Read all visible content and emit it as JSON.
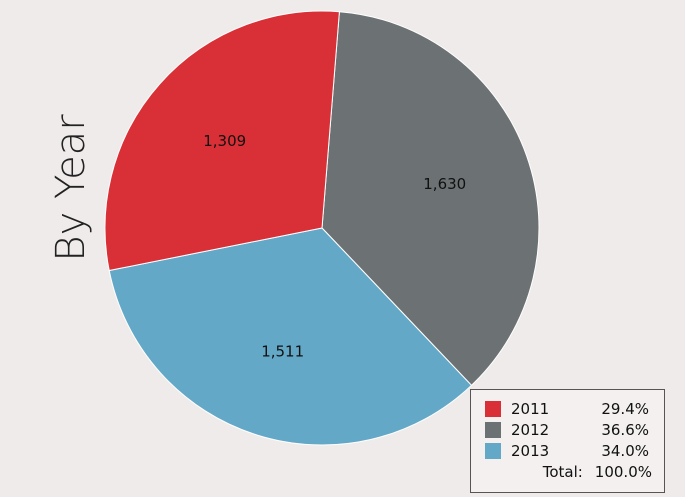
{
  "chart_data": {
    "type": "pie",
    "ylabel": "By Year",
    "slices": [
      {
        "name": "2011",
        "value": 1309,
        "label": "1,309",
        "percent": "29.4%",
        "color": "#d93037"
      },
      {
        "name": "2012",
        "value": 1630,
        "label": "1,630",
        "percent": "36.6%",
        "color": "#6c7273"
      },
      {
        "name": "2013",
        "value": 1511,
        "label": "1,511",
        "percent": "34.0%",
        "color": "#64a8c8"
      }
    ],
    "legend": {
      "placement": "bottom-right",
      "total_label": "Total:",
      "total_value": "100.0%"
    }
  }
}
